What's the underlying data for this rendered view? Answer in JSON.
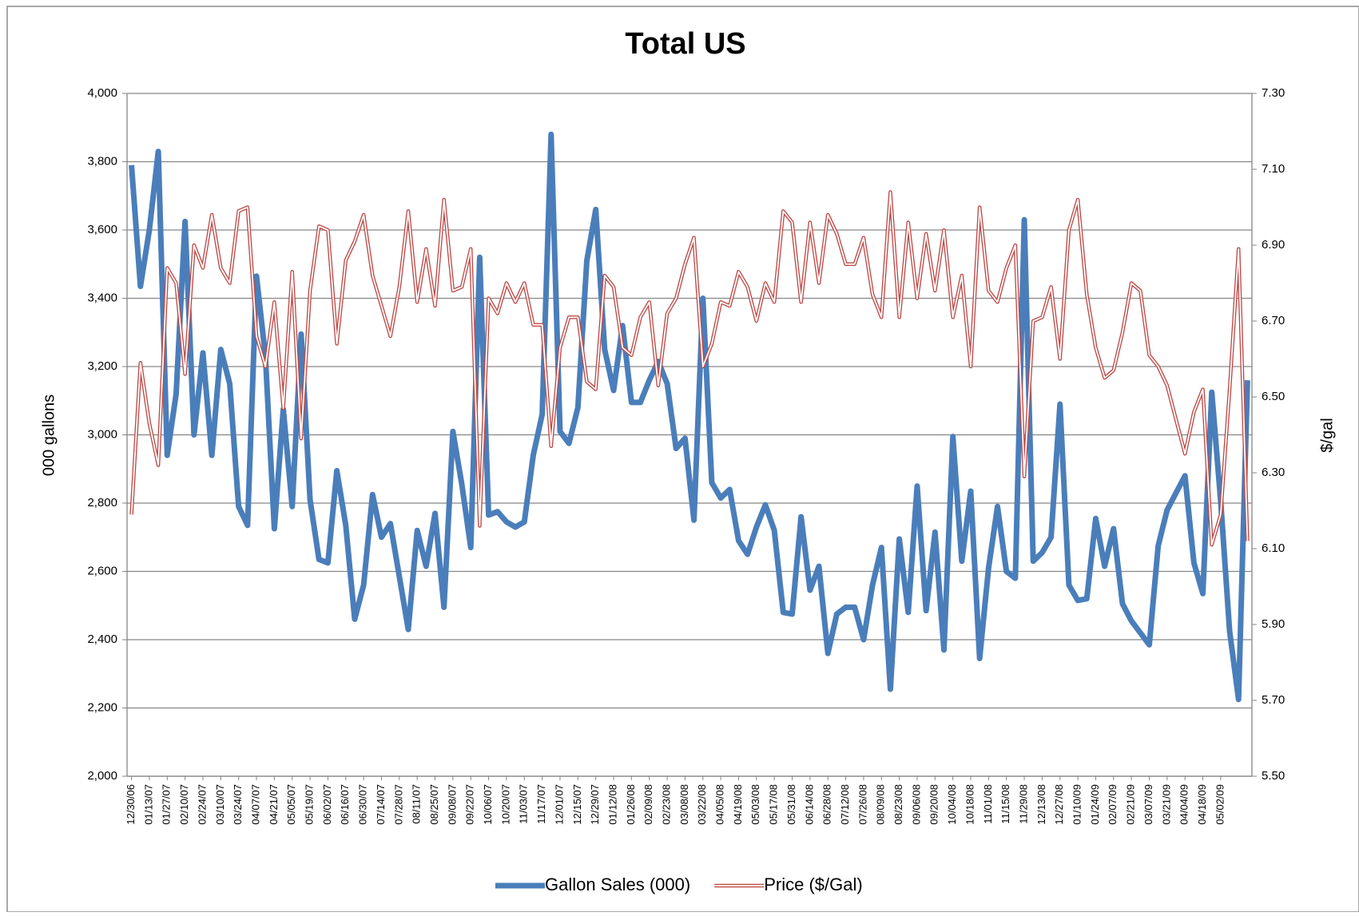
{
  "chart_data": {
    "type": "line",
    "title": "Total US",
    "y_label": "000 gallons",
    "y2_label": "$/gal",
    "categories": [
      "12/30/06",
      null,
      "01/13/07",
      null,
      "01/27/07",
      null,
      "02/10/07",
      null,
      "02/24/07",
      null,
      "03/10/07",
      null,
      "03/24/07",
      null,
      "04/07/07",
      null,
      "04/21/07",
      null,
      "05/05/07",
      null,
      "05/19/07",
      null,
      "06/02/07",
      null,
      "06/16/07",
      null,
      "06/30/07",
      null,
      "07/14/07",
      null,
      "07/28/07",
      null,
      "08/11/07",
      null,
      "08/25/07",
      null,
      "09/08/07",
      null,
      "09/22/07",
      null,
      "10/06/07",
      null,
      "10/20/07",
      null,
      "11/03/07",
      null,
      "11/17/07",
      null,
      "12/01/07",
      null,
      "12/15/07",
      null,
      "12/29/07",
      null,
      "01/12/08",
      null,
      "01/26/08",
      null,
      "02/09/08",
      null,
      "02/23/08",
      null,
      "03/08/08",
      null,
      "03/22/08",
      null,
      "04/05/08",
      null,
      "04/19/08",
      null,
      "05/03/08",
      null,
      "05/17/08",
      null,
      "05/31/08",
      null,
      "06/14/08",
      null,
      "06/28/08",
      null,
      "07/12/08",
      null,
      "07/26/08",
      null,
      "08/09/08",
      null,
      "08/23/08",
      null,
      "09/06/08",
      null,
      "09/20/08",
      null,
      "10/04/08",
      null,
      "10/18/08",
      null,
      "11/01/08",
      null,
      "11/15/08",
      null,
      "11/29/08",
      null,
      "12/13/08",
      null,
      "12/27/08",
      null,
      "01/10/09",
      null,
      "01/24/09",
      null,
      "02/07/09",
      null,
      "02/21/09",
      null,
      "03/07/09",
      null,
      "03/21/09",
      null,
      "04/04/09",
      null,
      "04/18/09",
      null,
      "05/02/09",
      null,
      null,
      null
    ],
    "series": [
      {
        "name": "Gallon Sales (000)",
        "color": "#4a7ebb",
        "axis": "y",
        "values": [
          3790,
          3435,
          3600,
          3830,
          2940,
          3120,
          3625,
          3000,
          3240,
          2940,
          3250,
          3150,
          2790,
          2735,
          3465,
          3230,
          2725,
          3075,
          2790,
          3295,
          2810,
          2635,
          2625,
          2895,
          2735,
          2460,
          2560,
          2825,
          2700,
          2740,
          2585,
          2430,
          2720,
          2615,
          2770,
          2495,
          3010,
          2855,
          2670,
          3520,
          2765,
          2775,
          2745,
          2730,
          2745,
          2940,
          3060,
          3880,
          3010,
          2975,
          3080,
          3510,
          3660,
          3250,
          3130,
          3320,
          3095,
          3095,
          3160,
          3215,
          3150,
          2960,
          2990,
          2750,
          3400,
          2860,
          2815,
          2840,
          2690,
          2650,
          2730,
          2795,
          2720,
          2480,
          2475,
          2760,
          2545,
          2615,
          2360,
          2475,
          2495,
          2495,
          2400,
          2560,
          2670,
          2255,
          2695,
          2480,
          2850,
          2485,
          2715,
          2370,
          2995,
          2630,
          2835,
          2345,
          2610,
          2790,
          2600,
          2580,
          3630,
          2630,
          2655,
          2700,
          3090,
          2560,
          2515,
          2520,
          2755,
          2615,
          2725,
          2505,
          2455,
          2420,
          2385,
          2675,
          2780,
          2830,
          2880,
          2625,
          2535,
          3125,
          2805,
          2425,
          2225,
          3160
        ]
      },
      {
        "name": "Price ($/Gal)",
        "color": "#be4b48",
        "axis": "y2",
        "values": [
          6.19,
          6.59,
          6.43,
          6.32,
          6.84,
          6.8,
          6.56,
          6.9,
          6.84,
          6.98,
          6.84,
          6.8,
          6.99,
          7.0,
          6.66,
          6.58,
          6.75,
          6.47,
          6.83,
          6.39,
          6.78,
          6.95,
          6.94,
          6.64,
          6.86,
          6.91,
          6.98,
          6.82,
          6.74,
          6.66,
          6.79,
          6.99,
          6.75,
          6.89,
          6.74,
          7.02,
          6.78,
          6.79,
          6.89,
          6.16,
          6.76,
          6.72,
          6.8,
          6.75,
          6.8,
          6.69,
          6.69,
          6.37,
          6.63,
          6.71,
          6.71,
          6.54,
          6.52,
          6.82,
          6.79,
          6.63,
          6.61,
          6.71,
          6.75,
          6.53,
          6.72,
          6.76,
          6.85,
          6.92,
          6.58,
          6.64,
          6.75,
          6.74,
          6.83,
          6.79,
          6.7,
          6.8,
          6.75,
          6.99,
          6.96,
          6.75,
          6.96,
          6.8,
          6.98,
          6.93,
          6.85,
          6.85,
          6.92,
          6.77,
          6.71,
          7.04,
          6.71,
          6.96,
          6.76,
          6.93,
          6.78,
          6.94,
          6.71,
          6.82,
          6.58,
          7.0,
          6.78,
          6.75,
          6.84,
          6.9,
          6.29,
          6.7,
          6.71,
          6.79,
          6.6,
          6.94,
          7.02,
          6.77,
          6.63,
          6.55,
          6.57,
          6.67,
          6.8,
          6.78,
          6.61,
          6.58,
          6.53,
          6.44,
          6.35,
          6.46,
          6.52,
          6.11,
          6.19,
          6.52,
          6.89,
          6.12
        ]
      }
    ],
    "ylim": [
      2000,
      4000
    ],
    "yticks": [
      {
        "value": 2000,
        "label": "2,000"
      },
      {
        "value": 2200,
        "label": "2,200"
      },
      {
        "value": 2400,
        "label": "2,400"
      },
      {
        "value": 2600,
        "label": "2,600"
      },
      {
        "value": 2800,
        "label": "2,800"
      },
      {
        "value": 3000,
        "label": "3,000"
      },
      {
        "value": 3200,
        "label": "3,200"
      },
      {
        "value": 3400,
        "label": "3,400"
      },
      {
        "value": 3600,
        "label": "3,600"
      },
      {
        "value": 3800,
        "label": "3,800"
      },
      {
        "value": 4000,
        "label": "4,000"
      }
    ],
    "y2lim": [
      5.5,
      7.3
    ],
    "y2ticks": [
      {
        "value": 5.5,
        "label": "5.50"
      },
      {
        "value": 5.7,
        "label": "5.70"
      },
      {
        "value": 5.9,
        "label": "5.90"
      },
      {
        "value": 6.1,
        "label": "6.10"
      },
      {
        "value": 6.3,
        "label": "6.30"
      },
      {
        "value": 6.5,
        "label": "6.50"
      },
      {
        "value": 6.7,
        "label": "6.70"
      },
      {
        "value": 6.9,
        "label": "6.90"
      },
      {
        "value": 7.1,
        "label": "7.10"
      },
      {
        "value": 7.3,
        "label": "7.30"
      }
    ],
    "grid": true,
    "legend": "bottom"
  }
}
